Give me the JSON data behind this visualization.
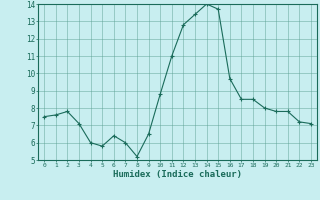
{
  "x": [
    0,
    1,
    2,
    3,
    4,
    5,
    6,
    7,
    8,
    9,
    10,
    11,
    12,
    13,
    14,
    15,
    16,
    17,
    18,
    19,
    20,
    21,
    22,
    23
  ],
  "y": [
    7.5,
    7.6,
    7.8,
    7.1,
    6.0,
    5.8,
    6.4,
    6.0,
    5.2,
    6.5,
    8.8,
    11.0,
    12.8,
    13.4,
    14.0,
    13.7,
    9.7,
    8.5,
    8.5,
    8.0,
    7.8,
    7.8,
    7.2,
    7.1
  ],
  "xlabel": "Humidex (Indice chaleur)",
  "ylim": [
    5,
    14
  ],
  "xlim": [
    -0.5,
    23.5
  ],
  "yticks": [
    5,
    6,
    7,
    8,
    9,
    10,
    11,
    12,
    13,
    14
  ],
  "xticks": [
    0,
    1,
    2,
    3,
    4,
    5,
    6,
    7,
    8,
    9,
    10,
    11,
    12,
    13,
    14,
    15,
    16,
    17,
    18,
    19,
    20,
    21,
    22,
    23
  ],
  "line_color": "#1a6b5a",
  "marker": "+",
  "bg_color": "#c8eef0",
  "grid_color": "#5a9e90",
  "axes_color": "#1a6b5a",
  "tick_color": "#1a6b5a",
  "label_color": "#1a6b5a"
}
